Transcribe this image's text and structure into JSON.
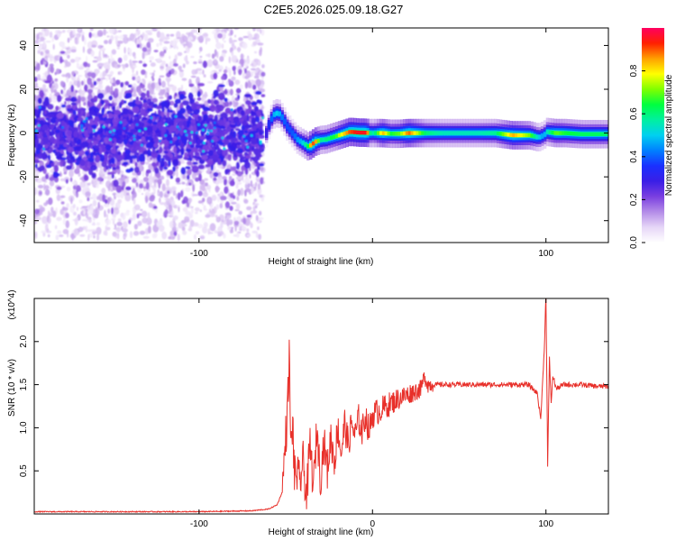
{
  "figure_title": "C2E5.2026.025.09.18.G27",
  "chart_data": [
    {
      "type": "heatmap",
      "title": "C2E5.2026.025.09.18.G27",
      "xlabel": "Height of straight line (km)",
      "ylabel": "Frequency (Hz)",
      "xlim": [
        -195,
        136
      ],
      "ylim": [
        -50,
        48
      ],
      "xticks": [
        -100,
        0,
        100
      ],
      "xtick_labels": [
        "-100",
        "",
        "100"
      ],
      "yticks": [
        -40,
        -20,
        0,
        20,
        40
      ],
      "ytick_labels": [
        "-40",
        "-20",
        "0",
        "20",
        "40"
      ],
      "colorbar": {
        "label": "Normalized spectral amplitude",
        "range": [
          0,
          1
        ],
        "ticks": [
          0.0,
          0.2,
          0.4,
          0.6,
          0.8
        ],
        "tick_labels": [
          "0.0",
          "0.2",
          "0.4",
          "0.6",
          "0.8"
        ],
        "colormap": [
          "#ffffff",
          "#e6d6f7",
          "#b48ce8",
          "#7a3fe0",
          "#3a1ee6",
          "#1a30ff",
          "#0080ff",
          "#00d0f0",
          "#00f0a0",
          "#00ff40",
          "#80ff00",
          "#ffff00",
          "#ffa000",
          "#ff2000",
          "#ff0060"
        ]
      },
      "ridge": {
        "x": [
          -195,
          -150,
          -100,
          -62,
          -60,
          -58,
          -57,
          -56,
          -55,
          -54,
          -52,
          -50,
          -48,
          -46,
          -44,
          -42,
          -40,
          -38,
          -36,
          -34,
          -32,
          -30,
          -28,
          -26,
          -24,
          -22,
          -20,
          -18,
          -16,
          -14,
          -12,
          -10,
          -8,
          -6,
          -4,
          -2,
          0,
          5,
          10,
          15,
          20,
          30,
          40,
          50,
          60,
          70,
          80,
          90,
          95,
          98,
          100,
          105,
          110,
          120,
          130,
          136
        ],
        "freq": [
          0,
          0,
          0,
          0,
          5,
          8,
          9,
          9,
          9,
          8.5,
          6,
          3,
          1,
          -1,
          -3,
          -4,
          -5,
          -6,
          -5.5,
          -4,
          -3.5,
          -3,
          -3,
          -2.5,
          -2,
          -1.5,
          -1,
          -0.5,
          0,
          0.5,
          0.5,
          0.3,
          0.2,
          0.2,
          0.1,
          0,
          0,
          0,
          -0.3,
          -0.3,
          0,
          0,
          0,
          0,
          0,
          0,
          -1,
          -1,
          -2,
          -1,
          0.5,
          0,
          0,
          -0.5,
          -0.5,
          -0.5
        ],
        "amplitude": [
          0.25,
          0.25,
          0.25,
          0.28,
          0.35,
          0.45,
          0.5,
          0.5,
          0.5,
          0.45,
          0.4,
          0.38,
          0.38,
          0.4,
          0.45,
          0.48,
          0.55,
          0.65,
          0.9,
          0.9,
          0.7,
          0.55,
          0.6,
          0.6,
          0.65,
          0.65,
          0.75,
          0.8,
          0.85,
          0.9,
          0.92,
          0.95,
          0.95,
          0.95,
          0.95,
          0.6,
          0.55,
          0.85,
          0.65,
          0.7,
          0.9,
          0.6,
          0.55,
          0.55,
          0.55,
          0.58,
          0.85,
          0.7,
          0.5,
          0.45,
          0.55,
          0.7,
          0.65,
          0.62,
          0.62,
          0.6
        ]
      },
      "noise_region": {
        "x_range": [
          -195,
          -63
        ],
        "freq_spread": 48,
        "core_spread": 8
      }
    },
    {
      "type": "line",
      "xlabel": "Height of straight line (km)",
      "ylabel": "SNR (10 * v/v)",
      "y_scale_label": "(x10^4)",
      "xlim": [
        -195,
        136
      ],
      "ylim": [
        0,
        2.5
      ],
      "xticks": [
        -100,
        0,
        100
      ],
      "xtick_labels": [
        "-100",
        "0",
        "100"
      ],
      "yticks": [
        0.5,
        1.0,
        1.5,
        2.0
      ],
      "ytick_labels": [
        "0.5",
        "1.0",
        "1.5",
        "2.0"
      ],
      "series": [
        {
          "name": "SNR",
          "color": "#e8302a",
          "x": [
            -195,
            -150,
            -100,
            -70,
            -60,
            -55,
            -52,
            -50,
            -49,
            -48,
            -47,
            -46,
            -45,
            -44,
            -42,
            -40,
            -38,
            -36,
            -34,
            -32,
            -30,
            -28,
            -26,
            -24,
            -22,
            -20,
            -18,
            -16,
            -14,
            -12,
            -10,
            -8,
            -6,
            -4,
            -2,
            0,
            4,
            8,
            12,
            16,
            20,
            24,
            28,
            30,
            32,
            34,
            40,
            50,
            60,
            70,
            80,
            90,
            95,
            97,
            99,
            100,
            101,
            102,
            103,
            104,
            106,
            110,
            120,
            130,
            136
          ],
          "y": [
            0.02,
            0.02,
            0.02,
            0.03,
            0.05,
            0.1,
            0.25,
            0.9,
            1.2,
            1.82,
            0.7,
            1.1,
            0.4,
            0.5,
            0.35,
            0.6,
            0.2,
            0.8,
            0.3,
            1.0,
            0.4,
            0.85,
            0.5,
            0.9,
            0.6,
            1.0,
            0.7,
            1.05,
            0.8,
            1.05,
            0.9,
            1.1,
            0.95,
            1.15,
            0.95,
            1.15,
            1.2,
            1.25,
            1.3,
            1.35,
            1.38,
            1.42,
            1.45,
            1.6,
            1.5,
            1.5,
            1.5,
            1.5,
            1.5,
            1.5,
            1.5,
            1.5,
            1.4,
            1.1,
            1.9,
            2.55,
            0.55,
            1.8,
            1.3,
            1.6,
            1.45,
            1.5,
            1.5,
            1.48,
            1.48
          ]
        }
      ]
    }
  ]
}
